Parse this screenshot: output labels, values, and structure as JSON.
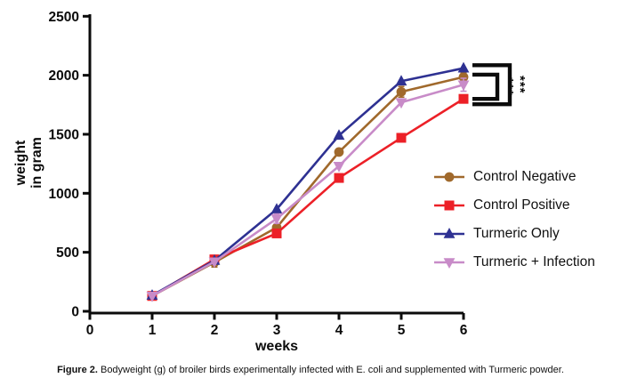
{
  "figure": {
    "caption_prefix": "Figure 2.",
    "caption_text": " Bodyweight (g) of broiler birds experimentally infected with E. coli and supplemented with Turmeric powder."
  },
  "chart_data": {
    "type": "line",
    "title": "",
    "xlabel": "weeks",
    "ylabel_line1": "weight",
    "ylabel_line2": "in gram",
    "x": [
      1,
      2,
      3,
      4,
      5,
      6
    ],
    "xticks": [
      0,
      1,
      2,
      3,
      4,
      5,
      6
    ],
    "yticks": [
      0,
      500,
      1000,
      1500,
      2000,
      2500
    ],
    "xlim": [
      0,
      6
    ],
    "ylim": [
      0,
      2500
    ],
    "grid": false,
    "legend_position": "right",
    "axis_color": "#0b0b0b",
    "series": [
      {
        "name": "Control Negative",
        "color": "#A0692C",
        "marker": "circle",
        "values": [
          130,
          415,
          710,
          1350,
          1860,
          1985
        ]
      },
      {
        "name": "Control Positive",
        "color": "#EC2027",
        "marker": "square",
        "values": [
          130,
          440,
          660,
          1130,
          1470,
          1800
        ]
      },
      {
        "name": "Turmeric Only",
        "color": "#2E3192",
        "marker": "triangle-up",
        "values": [
          135,
          430,
          865,
          1490,
          1950,
          2060
        ]
      },
      {
        "name": "Turmeric + Infection",
        "color": "#C88BC8",
        "marker": "triangle-down",
        "values": [
          130,
          420,
          785,
          1230,
          1770,
          1920
        ]
      }
    ],
    "error_bars": [
      {
        "series": 0,
        "week": 2,
        "e": 40
      },
      {
        "series": 0,
        "week": 5,
        "e": 45
      },
      {
        "series": 0,
        "week": 6,
        "e": 35
      },
      {
        "series": 3,
        "week": 3,
        "e": 40
      },
      {
        "series": 3,
        "week": 6,
        "e": 55
      }
    ],
    "annotations": [
      {
        "type": "bracket",
        "label": "***",
        "from_value": 2085,
        "to_value": 1755,
        "depth": "outer"
      },
      {
        "type": "bracket",
        "label": "***",
        "from_value": 2005,
        "to_value": 1800,
        "depth": "inner"
      }
    ]
  }
}
